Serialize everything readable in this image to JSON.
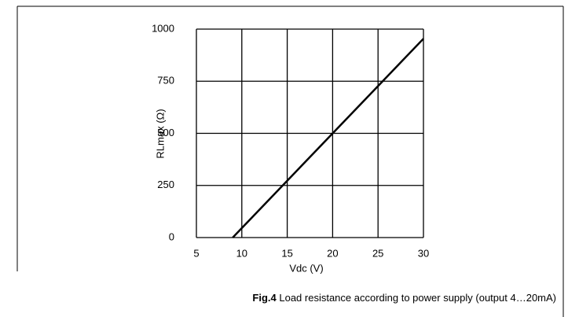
{
  "chart_data": {
    "type": "line",
    "x_label": "Vdc  (V)",
    "y_label": "RLmax   (Ω)",
    "caption_label": "Fig.4",
    "caption": "Load resistance according to power supply (output 4…20mA)",
    "x": [
      9,
      30
    ],
    "series": [
      {
        "name": "RLmax",
        "color": "#000000",
        "values": [
          0,
          954
        ]
      }
    ],
    "xlim": [
      5,
      30
    ],
    "xticks": [
      5,
      10,
      15,
      20,
      25,
      30
    ],
    "ylim": [
      0,
      1000
    ],
    "yticks": [
      0,
      250,
      500,
      750,
      1000
    ],
    "grid": true
  }
}
